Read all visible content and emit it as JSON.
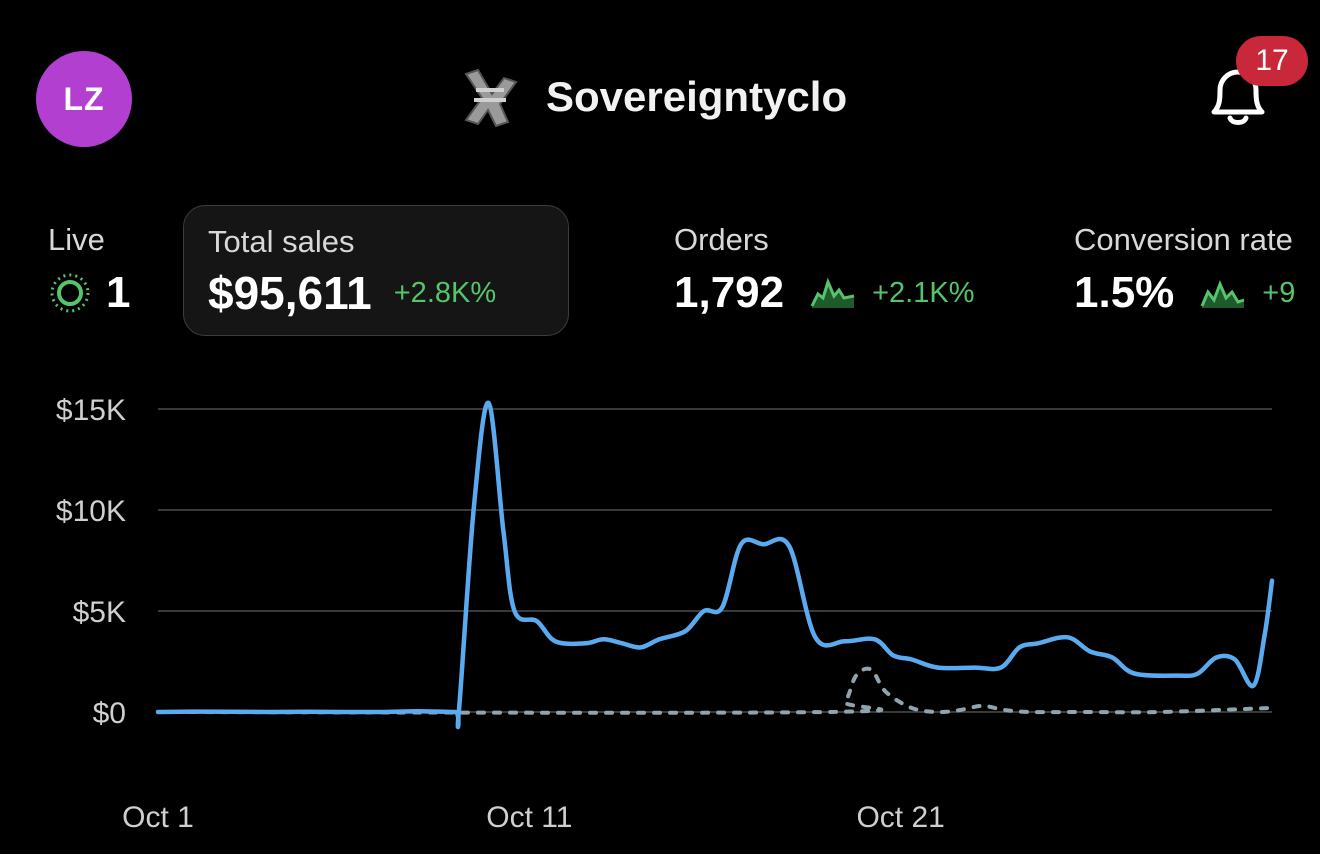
{
  "header": {
    "avatar_initials": "LZ",
    "avatar_color": "#b23fd0",
    "store_name": "Sovereigntyclo",
    "store_logo_icon": "store-logo-icon",
    "notifications_icon": "bell-icon",
    "notification_count": "17"
  },
  "metrics": {
    "live": {
      "label": "Live",
      "value": "1",
      "icon": "live-pulse-icon"
    },
    "total_sales": {
      "label": "Total sales",
      "value": "$95,611",
      "change": "+2.8K%"
    },
    "orders": {
      "label": "Orders",
      "value": "1,792",
      "change": "+2.1K%",
      "icon": "sparkline-icon"
    },
    "conversion": {
      "label": "Conversion rate",
      "value": "1.5%",
      "change": "+9",
      "icon": "sparkline-icon"
    }
  },
  "colors": {
    "accent": "#5aaaf0",
    "positive": "#55c46a",
    "comparison": "#8fa4ae",
    "badge": "#c8283a"
  },
  "chart_data": {
    "type": "line",
    "ylim": [
      0,
      15000
    ],
    "yticks": [
      "$0",
      "$5K",
      "$10K",
      "$15K"
    ],
    "ytick_values": [
      0,
      5000,
      10000,
      15000
    ],
    "xlim": [
      1,
      31
    ],
    "xticks": [
      "Oct 1",
      "Oct 11",
      "Oct 21"
    ],
    "xtick_values": [
      1,
      11,
      21
    ],
    "grid": true,
    "series": [
      {
        "style": "solid",
        "color": "#5aaaf0",
        "points": [
          [
            1,
            0
          ],
          [
            2,
            20
          ],
          [
            3,
            10
          ],
          [
            4,
            0
          ],
          [
            5,
            10
          ],
          [
            6,
            0
          ],
          [
            7,
            0
          ],
          [
            8,
            40
          ],
          [
            9,
            0
          ],
          [
            9.1,
            0
          ],
          [
            9.5,
            10000
          ],
          [
            9.9,
            15300
          ],
          [
            10.3,
            9000
          ],
          [
            10.6,
            5000
          ],
          [
            11.2,
            4500
          ],
          [
            11.7,
            3500
          ],
          [
            12.5,
            3400
          ],
          [
            13,
            3600
          ],
          [
            13.5,
            3400
          ],
          [
            14,
            3200
          ],
          [
            14.5,
            3600
          ],
          [
            15.2,
            4000
          ],
          [
            15.7,
            5000
          ],
          [
            16.2,
            5200
          ],
          [
            16.7,
            8300
          ],
          [
            17.3,
            8300
          ],
          [
            18,
            8200
          ],
          [
            18.7,
            3700
          ],
          [
            19.5,
            3500
          ],
          [
            20.3,
            3600
          ],
          [
            20.8,
            2800
          ],
          [
            21.3,
            2600
          ],
          [
            22,
            2200
          ],
          [
            23,
            2200
          ],
          [
            23.7,
            2200
          ],
          [
            24.2,
            3200
          ],
          [
            24.7,
            3400
          ],
          [
            25.5,
            3700
          ],
          [
            26.1,
            3000
          ],
          [
            26.7,
            2700
          ],
          [
            27.3,
            1900
          ],
          [
            28.5,
            1800
          ],
          [
            29,
            1900
          ],
          [
            29.5,
            2700
          ],
          [
            30,
            2600
          ],
          [
            30.5,
            1300
          ],
          [
            30.8,
            3800
          ],
          [
            31,
            6500
          ]
        ]
      },
      {
        "style": "dashed",
        "color": "#8fa4ae",
        "points": [
          [
            1,
            0
          ],
          [
            19,
            0
          ],
          [
            19.5,
            500
          ],
          [
            19.8,
            1800
          ],
          [
            20.2,
            2100
          ],
          [
            20.6,
            1000
          ],
          [
            21.3,
            200
          ],
          [
            22,
            0
          ],
          [
            22.6,
            100
          ],
          [
            23.2,
            300
          ],
          [
            23.8,
            100
          ],
          [
            24.5,
            0
          ],
          [
            26,
            0
          ],
          [
            28,
            0
          ],
          [
            31,
            200
          ]
        ]
      }
    ]
  }
}
